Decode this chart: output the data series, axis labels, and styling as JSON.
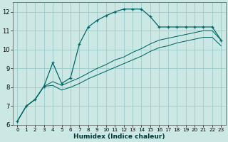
{
  "xlabel": "Humidex (Indice chaleur)",
  "background_color": "#cce8e4",
  "grid_color": "#99cccc",
  "line_color": "#006666",
  "xlim": [
    -0.5,
    23.5
  ],
  "ylim": [
    6,
    12.5
  ],
  "yticks": [
    6,
    7,
    8,
    9,
    10,
    11,
    12
  ],
  "xticks": [
    0,
    1,
    2,
    3,
    4,
    5,
    6,
    7,
    8,
    9,
    10,
    11,
    12,
    13,
    14,
    15,
    16,
    17,
    18,
    19,
    20,
    21,
    22,
    23
  ],
  "series1_x": [
    0,
    1,
    2,
    3,
    4,
    5,
    6,
    7,
    8,
    9,
    10,
    11,
    12,
    13,
    14,
    15,
    16,
    17,
    18,
    19,
    20,
    21,
    22,
    23
  ],
  "series1_y": [
    6.2,
    7.0,
    7.35,
    8.05,
    9.3,
    8.2,
    8.5,
    10.3,
    11.2,
    11.55,
    11.8,
    12.0,
    12.15,
    12.15,
    12.15,
    11.75,
    11.2,
    11.2,
    11.2,
    11.2,
    11.2,
    11.2,
    11.2,
    10.5
  ],
  "series2_x": [
    0,
    1,
    2,
    3,
    4,
    5,
    6,
    7,
    8,
    9,
    10,
    11,
    12,
    13,
    14,
    15,
    16,
    17,
    18,
    19,
    20,
    21,
    22,
    23
  ],
  "series2_y": [
    6.2,
    7.0,
    7.35,
    8.05,
    8.3,
    8.1,
    8.3,
    8.5,
    8.75,
    9.0,
    9.2,
    9.45,
    9.6,
    9.85,
    10.05,
    10.3,
    10.5,
    10.6,
    10.7,
    10.8,
    10.9,
    11.0,
    11.0,
    10.5
  ],
  "series3_x": [
    0,
    1,
    2,
    3,
    4,
    5,
    6,
    7,
    8,
    9,
    10,
    11,
    12,
    13,
    14,
    15,
    16,
    17,
    18,
    19,
    20,
    21,
    22,
    23
  ],
  "series3_y": [
    6.2,
    7.0,
    7.35,
    8.05,
    8.1,
    7.85,
    8.0,
    8.2,
    8.45,
    8.65,
    8.85,
    9.05,
    9.25,
    9.45,
    9.65,
    9.9,
    10.1,
    10.2,
    10.35,
    10.45,
    10.55,
    10.65,
    10.65,
    10.2
  ]
}
